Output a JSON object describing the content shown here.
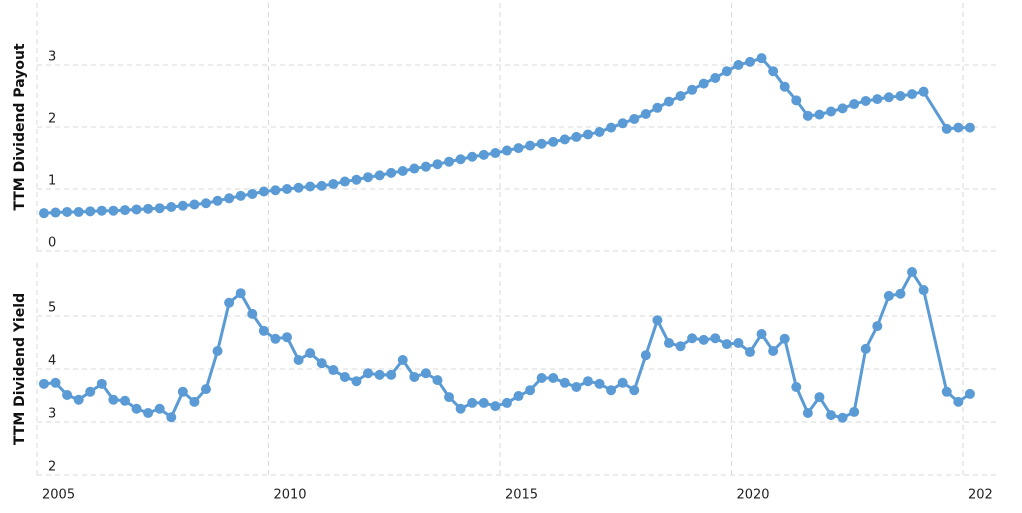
{
  "chart_data": [
    {
      "type": "line",
      "y_label": "TTM Dividend Payout",
      "color": "#5b9bd5",
      "x": [
        2005.15,
        2005.4,
        2005.65,
        2005.9,
        2006.15,
        2006.4,
        2006.65,
        2006.9,
        2007.15,
        2007.4,
        2007.65,
        2007.9,
        2008.15,
        2008.4,
        2008.65,
        2008.9,
        2009.15,
        2009.4,
        2009.65,
        2009.9,
        2010.15,
        2010.4,
        2010.65,
        2010.9,
        2011.15,
        2011.4,
        2011.65,
        2011.9,
        2012.15,
        2012.4,
        2012.65,
        2012.9,
        2013.15,
        2013.4,
        2013.65,
        2013.9,
        2014.15,
        2014.4,
        2014.65,
        2014.9,
        2015.15,
        2015.4,
        2015.65,
        2015.9,
        2016.15,
        2016.4,
        2016.65,
        2016.9,
        2017.15,
        2017.4,
        2017.65,
        2017.9,
        2018.15,
        2018.4,
        2018.65,
        2018.9,
        2019.15,
        2019.4,
        2019.65,
        2019.9,
        2020.15,
        2020.4,
        2020.65,
        2020.9,
        2021.15,
        2021.4,
        2021.65,
        2021.9,
        2022.15,
        2022.4,
        2022.65,
        2022.9,
        2023.15,
        2023.4,
        2023.65,
        2023.9,
        2024.15,
        2024.65,
        2024.9,
        2025.15
      ],
      "values": [
        0.61,
        0.62,
        0.63,
        0.63,
        0.64,
        0.65,
        0.65,
        0.66,
        0.67,
        0.68,
        0.69,
        0.71,
        0.73,
        0.75,
        0.77,
        0.81,
        0.85,
        0.89,
        0.92,
        0.96,
        0.98,
        1.0,
        1.02,
        1.04,
        1.05,
        1.08,
        1.12,
        1.15,
        1.19,
        1.22,
        1.26,
        1.29,
        1.33,
        1.36,
        1.4,
        1.44,
        1.48,
        1.52,
        1.55,
        1.58,
        1.62,
        1.66,
        1.7,
        1.73,
        1.76,
        1.8,
        1.84,
        1.88,
        1.92,
        1.99,
        2.06,
        2.13,
        2.21,
        2.31,
        2.41,
        2.5,
        2.6,
        2.7,
        2.79,
        2.9,
        3.0,
        3.05,
        3.11,
        2.9,
        2.65,
        2.43,
        2.18,
        2.2,
        2.25,
        2.3,
        2.37,
        2.42,
        2.45,
        2.48,
        2.5,
        2.53,
        2.57,
        1.97,
        1.99,
        1.99
      ],
      "xlim": [
        2005,
        2025.8
      ],
      "ylim": [
        0,
        4
      ],
      "yticks": [
        0,
        1,
        2,
        3
      ],
      "grid": true
    },
    {
      "type": "line",
      "y_label": "TTM Dividend Yield",
      "color": "#5b9bd5",
      "x": [
        2005.15,
        2005.4,
        2005.65,
        2005.9,
        2006.15,
        2006.4,
        2006.65,
        2006.9,
        2007.15,
        2007.4,
        2007.65,
        2007.9,
        2008.15,
        2008.4,
        2008.65,
        2008.9,
        2009.15,
        2009.4,
        2009.65,
        2009.9,
        2010.15,
        2010.4,
        2010.65,
        2010.9,
        2011.15,
        2011.4,
        2011.65,
        2011.9,
        2012.15,
        2012.4,
        2012.65,
        2012.9,
        2013.15,
        2013.4,
        2013.65,
        2013.9,
        2014.15,
        2014.4,
        2014.65,
        2014.9,
        2015.15,
        2015.4,
        2015.65,
        2015.9,
        2016.15,
        2016.4,
        2016.65,
        2016.9,
        2017.15,
        2017.4,
        2017.65,
        2017.9,
        2018.15,
        2018.4,
        2018.65,
        2018.9,
        2019.15,
        2019.4,
        2019.65,
        2019.9,
        2020.15,
        2020.4,
        2020.65,
        2020.9,
        2021.15,
        2021.4,
        2021.65,
        2021.9,
        2022.15,
        2022.4,
        2022.65,
        2022.9,
        2023.15,
        2023.4,
        2023.65,
        2023.9,
        2024.15,
        2024.65,
        2024.9,
        2025.15
      ],
      "values": [
        3.72,
        3.74,
        3.51,
        3.42,
        3.57,
        3.72,
        3.42,
        3.4,
        3.25,
        3.17,
        3.25,
        3.09,
        3.57,
        3.38,
        3.62,
        4.34,
        5.25,
        5.43,
        5.04,
        4.72,
        4.57,
        4.6,
        4.17,
        4.3,
        4.11,
        3.98,
        3.85,
        3.77,
        3.92,
        3.89,
        3.89,
        4.17,
        3.85,
        3.92,
        3.79,
        3.47,
        3.25,
        3.36,
        3.36,
        3.3,
        3.36,
        3.49,
        3.6,
        3.83,
        3.83,
        3.74,
        3.66,
        3.77,
        3.72,
        3.6,
        3.74,
        3.6,
        4.26,
        4.92,
        4.49,
        4.43,
        4.58,
        4.55,
        4.58,
        4.47,
        4.49,
        4.32,
        4.66,
        4.34,
        4.57,
        3.66,
        3.17,
        3.47,
        3.13,
        3.08,
        3.19,
        4.38,
        4.81,
        5.38,
        5.42,
        5.83,
        5.49,
        3.57,
        3.38,
        3.53
      ],
      "xlim": [
        2005,
        2025.8
      ],
      "ylim": [
        2,
        6
      ],
      "yticks": [
        2,
        3,
        4,
        5
      ],
      "xticks": [
        2005,
        2010,
        2015,
        2020,
        {
          "value": 2025,
          "label": "202"
        }
      ],
      "grid": true
    }
  ]
}
